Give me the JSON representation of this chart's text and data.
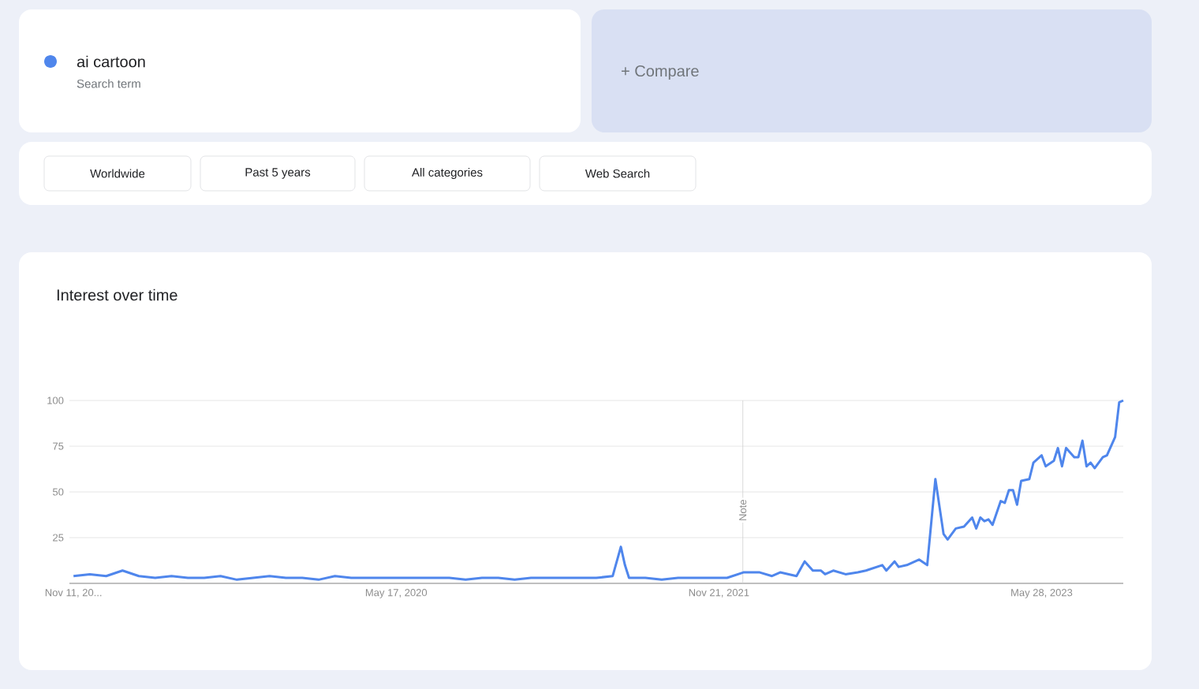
{
  "chart_data": {
    "type": "line",
    "title": "Interest over time",
    "annotations": [
      "Search term",
      "+ Compare",
      "Worldwide",
      "Past 5 years",
      "All categories",
      "Web Search"
    ],
    "xlim": [
      "2018-11-04",
      "2023-10-15"
    ],
    "xticks": [
      {
        "value": "2018-11-11",
        "label": "Nov 11, 20..."
      },
      {
        "value": "2020-05-17",
        "label": "May 17, 2020"
      },
      {
        "value": "2021-11-21",
        "label": "Nov 21, 2021"
      },
      {
        "value": "2023-05-28",
        "label": "May 28, 2023"
      }
    ],
    "ylim": [
      0,
      100
    ],
    "yticks": [
      25,
      50,
      75,
      100
    ],
    "grid": "y",
    "legend": "top left",
    "ref_lines": [
      {
        "axis": "x",
        "value": "2022-01-01",
        "label": "Note",
        "color": "#d0d0d0"
      }
    ],
    "series": [
      {
        "name": "ai cartoon",
        "color": "#4f86ec",
        "x": [
          "2018-11-11",
          "2018-12-09",
          "2019-01-06",
          "2019-02-03",
          "2019-03-03",
          "2019-03-31",
          "2019-04-28",
          "2019-05-26",
          "2019-06-23",
          "2019-07-21",
          "2019-08-18",
          "2019-09-15",
          "2019-10-13",
          "2019-11-10",
          "2019-12-08",
          "2020-01-05",
          "2020-02-02",
          "2020-03-01",
          "2020-03-29",
          "2020-04-26",
          "2020-05-24",
          "2020-06-21",
          "2020-07-19",
          "2020-08-16",
          "2020-09-13",
          "2020-10-11",
          "2020-11-08",
          "2020-12-06",
          "2021-01-03",
          "2021-01-31",
          "2021-02-28",
          "2021-03-28",
          "2021-04-25",
          "2021-05-23",
          "2021-06-06",
          "2021-06-13",
          "2021-06-20",
          "2021-07-18",
          "2021-08-15",
          "2021-09-12",
          "2021-10-10",
          "2021-11-07",
          "2021-12-05",
          "2022-01-02",
          "2022-01-30",
          "2022-02-20",
          "2022-03-06",
          "2022-04-03",
          "2022-04-17",
          "2022-05-01",
          "2022-05-15",
          "2022-05-22",
          "2022-06-05",
          "2022-06-26",
          "2022-07-17",
          "2022-07-31",
          "2022-08-28",
          "2022-09-04",
          "2022-09-18",
          "2022-09-25",
          "2022-10-09",
          "2022-10-30",
          "2022-11-13",
          "2022-11-27",
          "2022-12-11",
          "2022-12-18",
          "2023-01-01",
          "2023-01-15",
          "2023-01-29",
          "2023-02-05",
          "2023-02-12",
          "2023-02-19",
          "2023-02-26",
          "2023-03-05",
          "2023-03-19",
          "2023-03-26",
          "2023-04-02",
          "2023-04-09",
          "2023-04-16",
          "2023-04-23",
          "2023-05-07",
          "2023-05-14",
          "2023-05-28",
          "2023-06-04",
          "2023-06-18",
          "2023-06-25",
          "2023-07-02",
          "2023-07-09",
          "2023-07-23",
          "2023-07-30",
          "2023-08-06",
          "2023-08-13",
          "2023-08-20",
          "2023-08-27",
          "2023-09-10",
          "2023-09-17",
          "2023-09-24",
          "2023-10-01",
          "2023-10-08",
          "2023-10-15"
        ],
        "values": [
          4,
          5,
          4,
          7,
          4,
          3,
          4,
          3,
          3,
          4,
          2,
          3,
          4,
          3,
          3,
          2,
          4,
          3,
          3,
          3,
          3,
          3,
          3,
          3,
          2,
          3,
          3,
          2,
          3,
          3,
          3,
          3,
          3,
          4,
          20,
          10,
          3,
          3,
          2,
          3,
          3,
          3,
          3,
          6,
          6,
          4,
          6,
          4,
          12,
          7,
          7,
          5,
          7,
          5,
          6,
          7,
          10,
          7,
          12,
          9,
          10,
          13,
          10,
          57,
          27,
          24,
          30,
          31,
          36,
          30,
          36,
          34,
          35,
          32,
          45,
          44,
          51,
          51,
          43,
          56,
          57,
          66,
          70,
          64,
          67,
          74,
          64,
          74,
          69,
          69,
          78,
          64,
          66,
          63,
          69,
          70,
          75,
          80,
          99,
          100
        ]
      }
    ]
  }
}
